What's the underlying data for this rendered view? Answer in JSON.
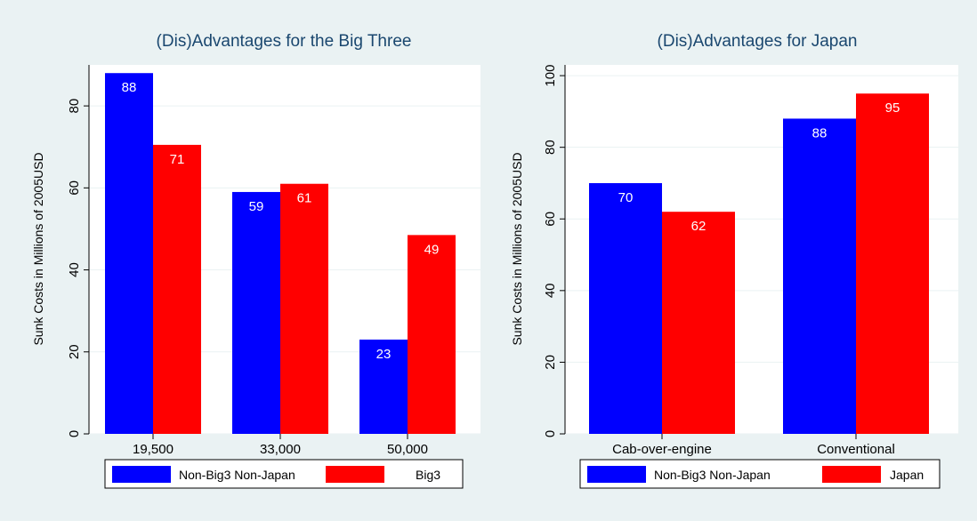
{
  "colors": {
    "background": "#eaf2f3",
    "plot_background": "#ffffff",
    "grid": "#eaf2f3",
    "title": "#1a476f",
    "series_blue": "#0000ff",
    "series_red": "#ff0000"
  },
  "chart_data": [
    {
      "type": "bar",
      "title": "(Dis)Advantages for the Big Three",
      "ylabel": "Sunk Costs in Millions of 2005USD",
      "xlabel": "",
      "categories": [
        "19,500",
        "33,000",
        "50,000"
      ],
      "series": [
        {
          "name": "Non-Big3 Non-Japan",
          "color": "#0000ff",
          "values": [
            88,
            59,
            23
          ],
          "labels": [
            "88",
            "59",
            "23"
          ]
        },
        {
          "name": "Big3",
          "color": "#ff0000",
          "values": [
            70.5,
            61,
            48.5
          ],
          "labels": [
            "71",
            "61",
            "49"
          ]
        }
      ],
      "ylim": [
        0,
        90
      ],
      "yticks": [
        0,
        20,
        40,
        60,
        80
      ],
      "ytick_labels": [
        "0",
        "20",
        "40",
        "60",
        "80"
      ],
      "grid": true,
      "legend_position": "bottom"
    },
    {
      "type": "bar",
      "title": "(Dis)Advantages for Japan",
      "ylabel": "Sunk Costs in Millions of 2005USD",
      "xlabel": "",
      "categories": [
        "Cab-over-engine",
        "Conventional"
      ],
      "series": [
        {
          "name": "Non-Big3 Non-Japan",
          "color": "#0000ff",
          "values": [
            70,
            88
          ],
          "labels": [
            "70",
            "88"
          ]
        },
        {
          "name": "Japan",
          "color": "#ff0000",
          "values": [
            62,
            95
          ],
          "labels": [
            "62",
            "95"
          ]
        }
      ],
      "ylim": [
        0,
        103
      ],
      "yticks": [
        0,
        20,
        40,
        60,
        80,
        100
      ],
      "ytick_labels": [
        "0",
        "20",
        "40",
        "60",
        "80",
        "100"
      ],
      "grid": true,
      "legend_position": "bottom"
    }
  ]
}
